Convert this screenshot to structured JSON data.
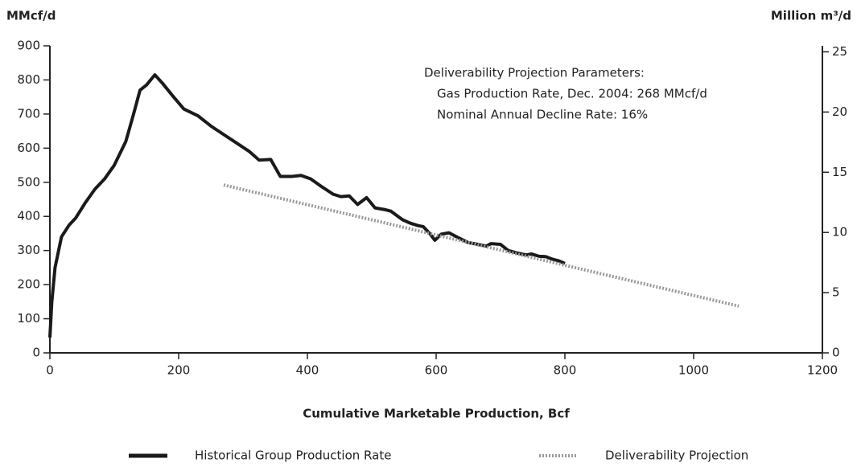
{
  "chart_data": {
    "type": "line",
    "y_label": "MMcf/d",
    "y2_label": "Million m³/d",
    "x_label": "Cumulative Marketable Production, Bcf",
    "annotations": [
      "Deliverability Projection Parameters:",
      "Gas Production Rate, Dec. 2004:  268 MMcf/d",
      "Nominal Annual Decline Rate: 16%"
    ],
    "xlim": [
      0,
      1200
    ],
    "xticks": [
      0,
      200,
      400,
      600,
      800,
      1000,
      1200
    ],
    "ylim": [
      0,
      900
    ],
    "yticks": [
      0,
      100,
      200,
      300,
      400,
      500,
      600,
      700,
      800,
      900
    ],
    "y2lim": [
      0,
      25.5
    ],
    "y2ticks": [
      0,
      5,
      10,
      15,
      20,
      25
    ],
    "series": [
      {
        "name": "Historical Group Production Rate",
        "color": "#1a1a1a",
        "dash": false,
        "x": [
          0,
          3,
          8,
          18,
          30,
          40,
          55,
          70,
          85,
          100,
          118,
          130,
          140,
          150,
          163,
          175,
          190,
          208,
          230,
          250,
          270,
          290,
          310,
          325,
          343,
          358,
          375,
          390,
          405,
          420,
          440,
          452,
          465,
          478,
          492,
          505,
          520,
          530,
          548,
          560,
          572,
          580,
          590,
          598,
          608,
          620,
          635,
          650,
          665,
          678,
          685,
          700,
          712,
          725,
          740,
          748,
          760,
          770,
          780,
          790,
          800
        ],
        "values": [
          45,
          150,
          250,
          340,
          375,
          395,
          440,
          480,
          510,
          550,
          620,
          700,
          770,
          785,
          815,
          790,
          755,
          715,
          695,
          665,
          640,
          615,
          590,
          565,
          567,
          517,
          517,
          520,
          510,
          490,
          465,
          458,
          460,
          435,
          455,
          425,
          420,
          415,
          390,
          380,
          373,
          370,
          350,
          330,
          348,
          352,
          337,
          323,
          318,
          313,
          320,
          318,
          300,
          293,
          287,
          290,
          283,
          282,
          275,
          270,
          262
        ]
      },
      {
        "name": "Deliverability Projection",
        "color": "#999999",
        "dash": true,
        "x": [
          270,
          1070
        ],
        "values": [
          492,
          137
        ]
      }
    ]
  }
}
